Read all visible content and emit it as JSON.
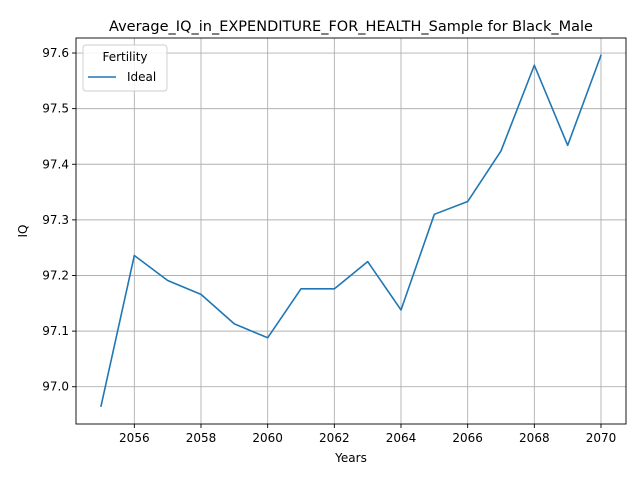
{
  "chart_data": {
    "type": "line",
    "title": "Average_IQ_in_EXPENDITURE_FOR_HEALTH_Sample for Black_Male",
    "xlabel": "Years",
    "ylabel": "IQ",
    "xlim": [
      2054.25,
      2070.75
    ],
    "ylim": [
      96.933,
      97.627
    ],
    "xticks": [
      "2056",
      "2058",
      "2060",
      "2062",
      "2064",
      "2066",
      "2068",
      "2070"
    ],
    "yticks": [
      "97.0",
      "97.1",
      "97.2",
      "97.3",
      "97.4",
      "97.5",
      "97.6"
    ],
    "grid": true,
    "legend": {
      "title": "Fertility",
      "placement": "upper-left"
    },
    "series": [
      {
        "name": "Ideal",
        "color": "#1f77b4",
        "x": [
          2055,
          2056,
          2057,
          2058,
          2059,
          2060,
          2061,
          2062,
          2063,
          2064,
          2065,
          2066,
          2067,
          2068,
          2069,
          2070
        ],
        "y": [
          96.965,
          97.236,
          97.191,
          97.166,
          97.113,
          97.088,
          97.176,
          97.176,
          97.225,
          97.138,
          97.31,
          97.333,
          97.424,
          97.578,
          97.434,
          97.596
        ]
      }
    ]
  }
}
